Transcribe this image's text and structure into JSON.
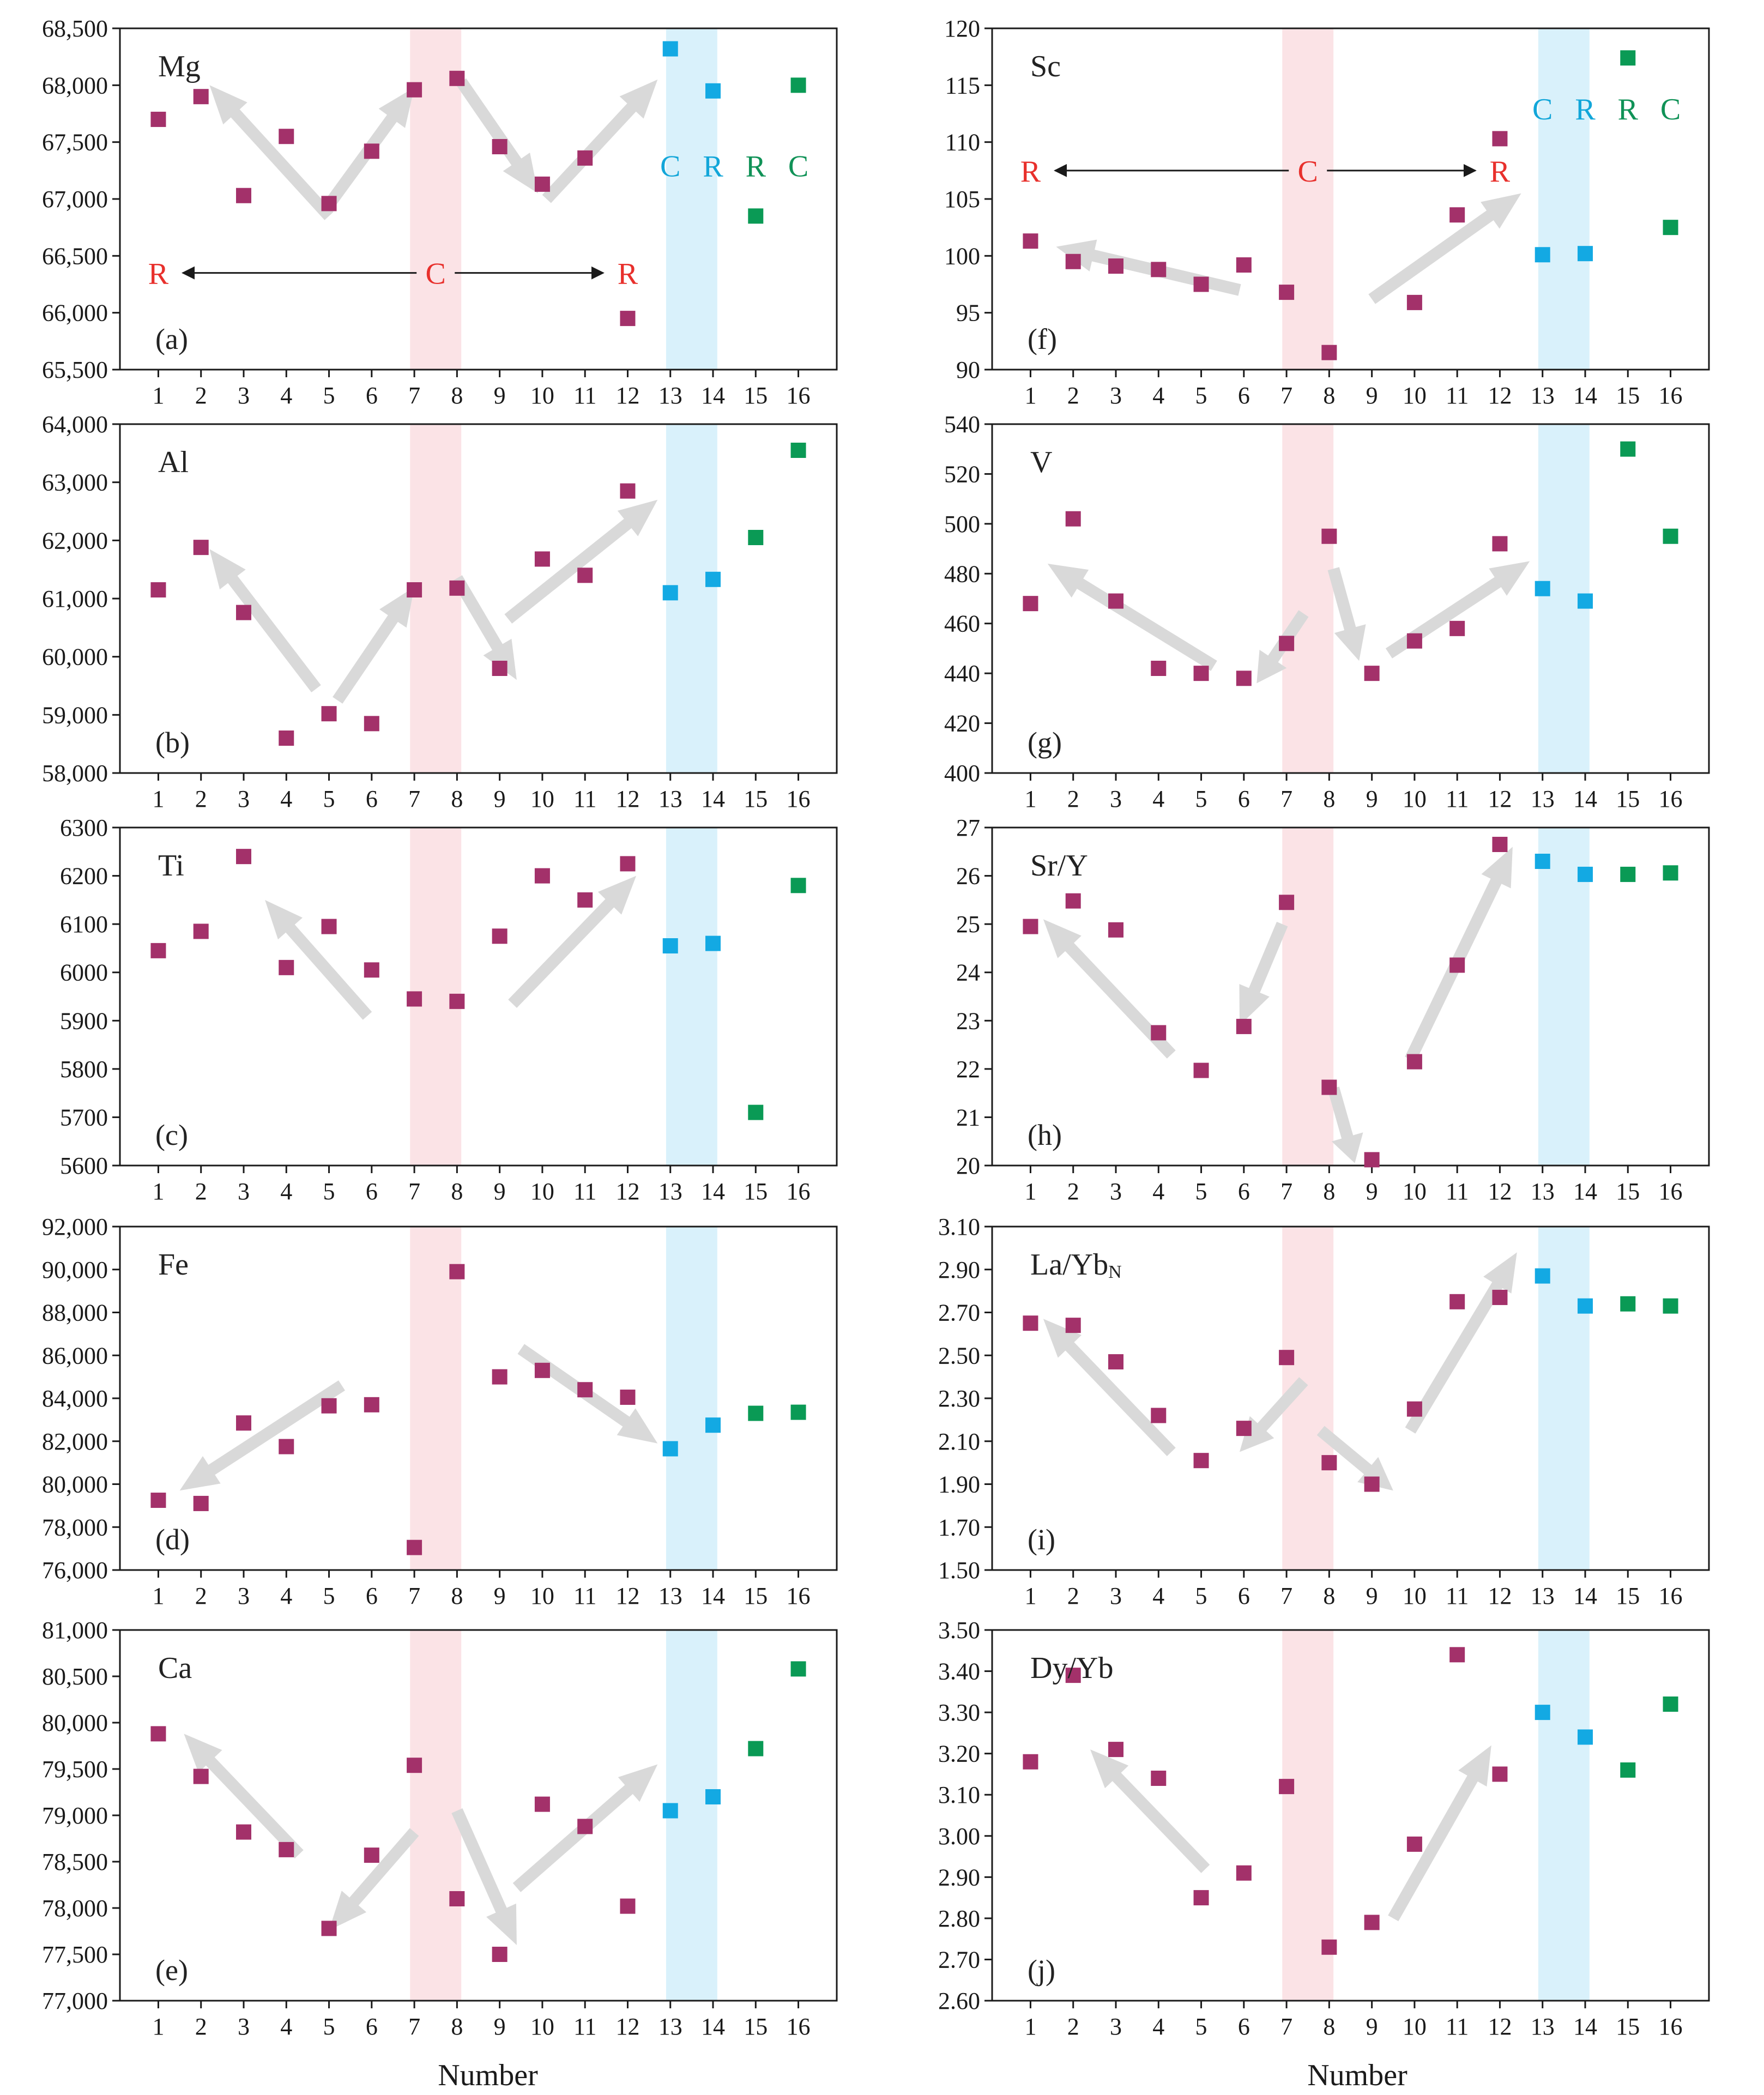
{
  "figure": {
    "xlabel": "Number",
    "colors": {
      "red_marker": "#a3316a",
      "blue_marker": "#13a9e3",
      "green_marker": "#0a9a55",
      "pink_band": "#fbe3e6",
      "blue_band": "#d9f1fb",
      "arrow": "#d9d9d9",
      "annotation_red": "#e8302c",
      "annotation_blue": "#12a6d9",
      "annotation_green": "#109257"
    },
    "annotations": {
      "r": "R",
      "c": "C",
      "blue_c": "C",
      "blue_r": "R",
      "green_r": "R",
      "green_c": "C"
    }
  },
  "chart_data": [
    {
      "type": "scatter",
      "name": "Mg",
      "tag": "(a)",
      "x": [
        1,
        2,
        3,
        4,
        5,
        6,
        7,
        8,
        9,
        10,
        11,
        12,
        13,
        14,
        15,
        16
      ],
      "values": [
        67700,
        67900,
        67030,
        67550,
        66960,
        67420,
        67960,
        68060,
        67460,
        67130,
        67360,
        65950,
        68320,
        67950,
        66850,
        68000
      ],
      "ylim": [
        65500,
        68500
      ],
      "yticks": [
        "65,500",
        "66,000",
        "66,500",
        "67,000",
        "67,500",
        "68,000",
        "68,500"
      ]
    },
    {
      "type": "scatter",
      "name": "Al",
      "tag": "(b)",
      "x": [
        1,
        2,
        3,
        4,
        5,
        6,
        7,
        8,
        9,
        10,
        11,
        12,
        13,
        14,
        15,
        16
      ],
      "values": [
        61150,
        61880,
        60760,
        58600,
        59020,
        58850,
        61150,
        61180,
        59800,
        61680,
        61400,
        62850,
        61100,
        61330,
        62050,
        63550
      ],
      "ylim": [
        58000,
        64000
      ],
      "yticks": [
        "58,000",
        "59,000",
        "60,000",
        "61,000",
        "62,000",
        "63,000",
        "64,000"
      ]
    },
    {
      "type": "scatter",
      "name": "Ti",
      "tag": "(c)",
      "x": [
        1,
        2,
        3,
        4,
        5,
        6,
        7,
        8,
        9,
        10,
        11,
        12,
        13,
        14,
        15,
        16
      ],
      "values": [
        6045,
        6085,
        6240,
        6010,
        6095,
        6005,
        5945,
        5940,
        6075,
        6200,
        6150,
        6225,
        6055,
        6060,
        5710,
        6180
      ],
      "ylim": [
        5600,
        6300
      ],
      "yticks": [
        "5600",
        "5700",
        "5800",
        "5900",
        "6000",
        "6100",
        "6200",
        "6300"
      ]
    },
    {
      "type": "scatter",
      "name": "Fe",
      "tag": "(d)",
      "x": [
        1,
        2,
        3,
        4,
        5,
        6,
        7,
        8,
        9,
        10,
        11,
        12,
        13,
        14,
        15,
        16
      ],
      "values": [
        79250,
        79100,
        82850,
        81750,
        83650,
        83700,
        77050,
        89900,
        85000,
        85300,
        84400,
        84050,
        81650,
        82750,
        83300,
        83350
      ],
      "ylim": [
        76000,
        92000
      ],
      "yticks": [
        "76,000",
        "78,000",
        "80,000",
        "82,000",
        "84,000",
        "86,000",
        "88,000",
        "90,000",
        "92,000"
      ]
    },
    {
      "type": "scatter",
      "name": "Ca",
      "tag": "(e)",
      "x": [
        1,
        2,
        3,
        4,
        5,
        6,
        7,
        8,
        9,
        10,
        11,
        12,
        13,
        14,
        15,
        16
      ],
      "values": [
        79880,
        79420,
        78820,
        78630,
        77780,
        78570,
        79540,
        78100,
        77500,
        79120,
        78880,
        78020,
        79050,
        79200,
        79720,
        80580
      ],
      "ylim": [
        77000,
        81000
      ],
      "yticks": [
        "77,000",
        "77,500",
        "78,000",
        "78,500",
        "79,000",
        "79,500",
        "80,000",
        "80,500",
        "81,000"
      ]
    },
    {
      "type": "scatter",
      "name": "Sc",
      "tag": "(f)",
      "x": [
        1,
        2,
        3,
        4,
        5,
        6,
        7,
        8,
        9,
        10,
        11,
        12,
        13,
        14,
        15,
        16
      ],
      "values": [
        101.3,
        99.5,
        99.1,
        98.8,
        97.5,
        99.2,
        96.8,
        91.5,
        null,
        95.9,
        103.6,
        110.3,
        100.1,
        100.2,
        117.4,
        102.5
      ],
      "ylim": [
        90,
        120
      ],
      "yticks": [
        "90",
        "95",
        "100",
        "105",
        "110",
        "115",
        "120"
      ]
    },
    {
      "type": "scatter",
      "name": "V",
      "tag": "(g)",
      "x": [
        1,
        2,
        3,
        4,
        5,
        6,
        7,
        8,
        9,
        10,
        11,
        12,
        13,
        14,
        15,
        16
      ],
      "values": [
        468,
        502,
        469,
        442,
        440,
        438,
        452,
        495,
        440,
        453,
        458,
        492,
        474,
        469,
        530,
        495
      ],
      "ylim": [
        400,
        540
      ],
      "yticks": [
        "400",
        "420",
        "440",
        "460",
        "480",
        "500",
        "520",
        "540"
      ]
    },
    {
      "type": "scatter",
      "name": "Sr/Y",
      "tag": "(h)",
      "x": [
        1,
        2,
        3,
        4,
        5,
        6,
        7,
        8,
        9,
        10,
        11,
        12,
        13,
        14,
        15,
        16
      ],
      "values": [
        24.95,
        25.48,
        24.88,
        22.75,
        21.97,
        22.88,
        25.45,
        21.62,
        20.12,
        22.15,
        24.15,
        26.65,
        26.3,
        26.03,
        26.03,
        26.06
      ],
      "ylim": [
        20,
        27
      ],
      "yticks": [
        "20",
        "21",
        "22",
        "23",
        "24",
        "25",
        "26",
        "27"
      ]
    },
    {
      "type": "scatter",
      "name": "La/Yb",
      "name_sub": "N",
      "tag": "(i)",
      "x": [
        1,
        2,
        3,
        4,
        5,
        6,
        7,
        8,
        9,
        10,
        11,
        12,
        13,
        14,
        15,
        16
      ],
      "values": [
        2.65,
        2.64,
        2.47,
        2.22,
        2.01,
        2.16,
        2.49,
        2.0,
        1.9,
        2.25,
        2.75,
        2.77,
        2.87,
        2.73,
        2.74,
        2.73
      ],
      "ylim": [
        1.5,
        3.1
      ],
      "yticks": [
        "1.50",
        "1.70",
        "1.90",
        "2.10",
        "2.30",
        "2.50",
        "2.70",
        "2.90",
        "3.10"
      ]
    },
    {
      "type": "scatter",
      "name": "Dy/Yb",
      "tag": "(j)",
      "x": [
        1,
        2,
        3,
        4,
        5,
        6,
        7,
        8,
        9,
        10,
        11,
        12,
        13,
        14,
        15,
        16
      ],
      "values": [
        3.18,
        3.39,
        3.21,
        3.14,
        2.85,
        2.91,
        3.12,
        2.73,
        2.79,
        2.98,
        3.44,
        3.15,
        3.3,
        3.24,
        3.16,
        3.32
      ],
      "ylim": [
        2.6,
        3.5
      ],
      "yticks": [
        "2.60",
        "2.70",
        "2.80",
        "2.90",
        "3.00",
        "3.10",
        "3.20",
        "3.30",
        "3.40",
        "3.50"
      ]
    }
  ]
}
